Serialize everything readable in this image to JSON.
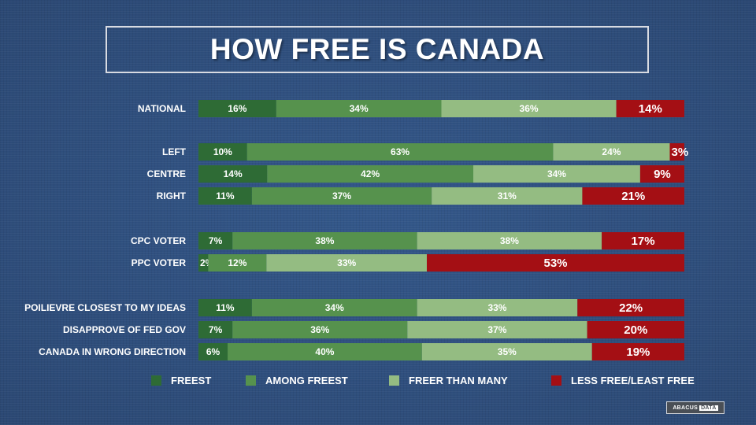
{
  "title": "HOW FREE IS CANADA",
  "colors": {
    "freest": "#2e6b35",
    "among_freest": "#56924d",
    "freer_than_many": "#94bc82",
    "less_free": "#a40f14"
  },
  "chart_data": {
    "type": "bar",
    "orientation": "horizontal",
    "stacked": true,
    "title": "HOW FREE IS CANADA",
    "categories": [
      "NATIONAL",
      "LEFT",
      "CENTRE",
      "RIGHT",
      "CPC VOTER",
      "PPC VOTER",
      "POILIEVRE CLOSEST TO MY IDEAS",
      "DISAPPROVE OF FED GOV",
      "CANADA IN WRONG DIRECTION"
    ],
    "series": [
      {
        "name": "FREEST",
        "color": "#2e6b35",
        "values": [
          16,
          10,
          14,
          11,
          7,
          2,
          11,
          7,
          6
        ]
      },
      {
        "name": "AMONG FREEST",
        "color": "#56924d",
        "values": [
          34,
          63,
          42,
          37,
          38,
          12,
          34,
          36,
          40
        ]
      },
      {
        "name": "FREER THAN MANY",
        "color": "#94bc82",
        "values": [
          36,
          24,
          34,
          31,
          38,
          33,
          33,
          37,
          35
        ]
      },
      {
        "name": "LESS FREE/LEAST FREE",
        "color": "#a40f14",
        "values": [
          14,
          3,
          9,
          21,
          17,
          53,
          22,
          20,
          19
        ]
      }
    ],
    "labels": [
      [
        "16%",
        "34%",
        "36%",
        "14%"
      ],
      [
        "10%",
        "63%",
        "24%",
        "3%"
      ],
      [
        "14%",
        "42%",
        "34%",
        "9%"
      ],
      [
        "11%",
        "37%",
        "31%",
        "21%"
      ],
      [
        "7%",
        "38%",
        "38%",
        "17%"
      ],
      [
        "2%",
        "12%",
        "33%",
        "53%"
      ],
      [
        "11%",
        "34%",
        "33%",
        "22%"
      ],
      [
        "7%",
        "36%",
        "37%",
        "20%"
      ],
      [
        "6%",
        "40%",
        "35%",
        "19%"
      ]
    ],
    "xlim": [
      0,
      100
    ],
    "legend_position": "bottom"
  },
  "logo": {
    "word1": "ABACUS",
    "word2": "DATA"
  }
}
